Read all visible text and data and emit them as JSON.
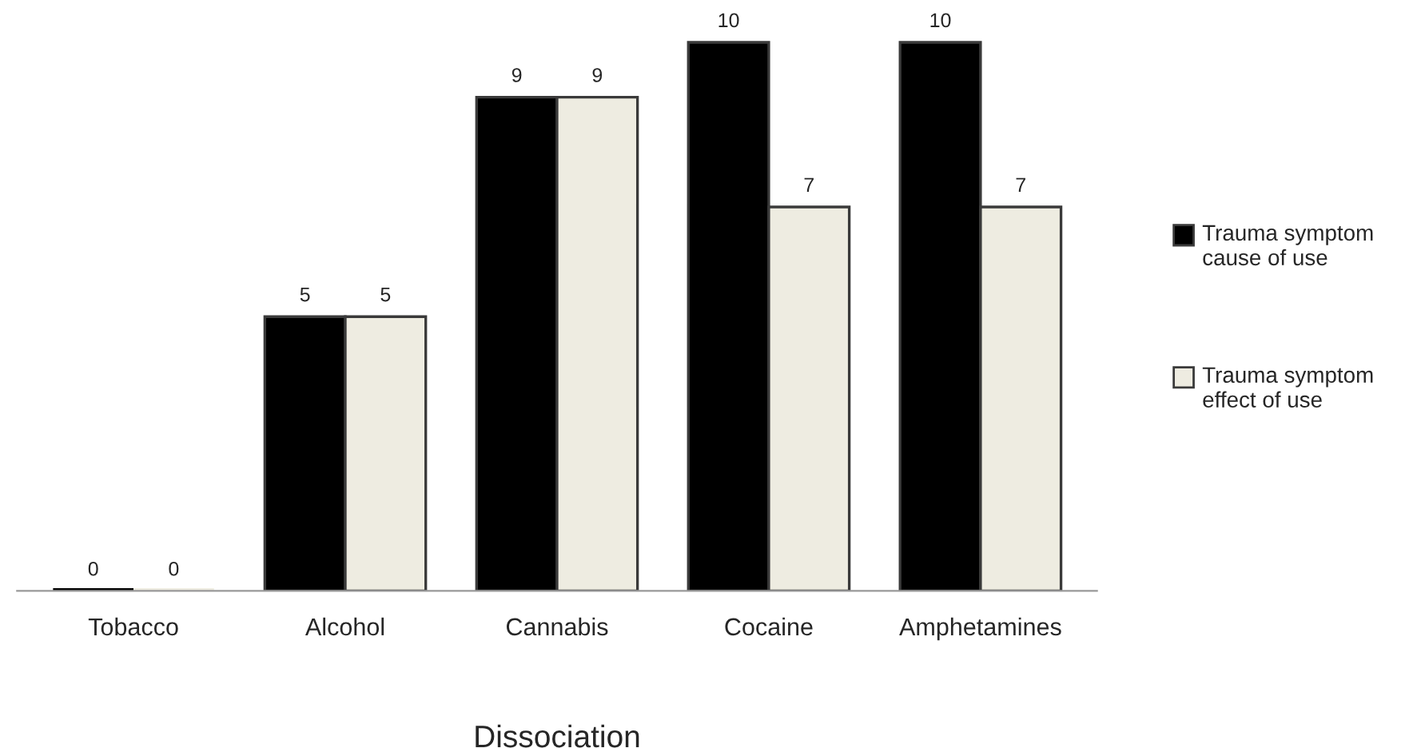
{
  "chart_data": {
    "type": "bar",
    "xlabel": "Dissociation",
    "categories": [
      "Tobacco",
      "Alcohol",
      "Cannabis",
      "Cocaine",
      "Amphetamines"
    ],
    "series": [
      {
        "name": "Trauma symptom cause of use",
        "color": "#000000",
        "values": [
          0,
          5,
          9,
          10,
          10
        ]
      },
      {
        "name": "Trauma symptom effect of use",
        "color": "#eeece1",
        "values": [
          0,
          5,
          9,
          7,
          7
        ]
      }
    ],
    "data_labels": true,
    "legend": "right",
    "grid": false
  }
}
